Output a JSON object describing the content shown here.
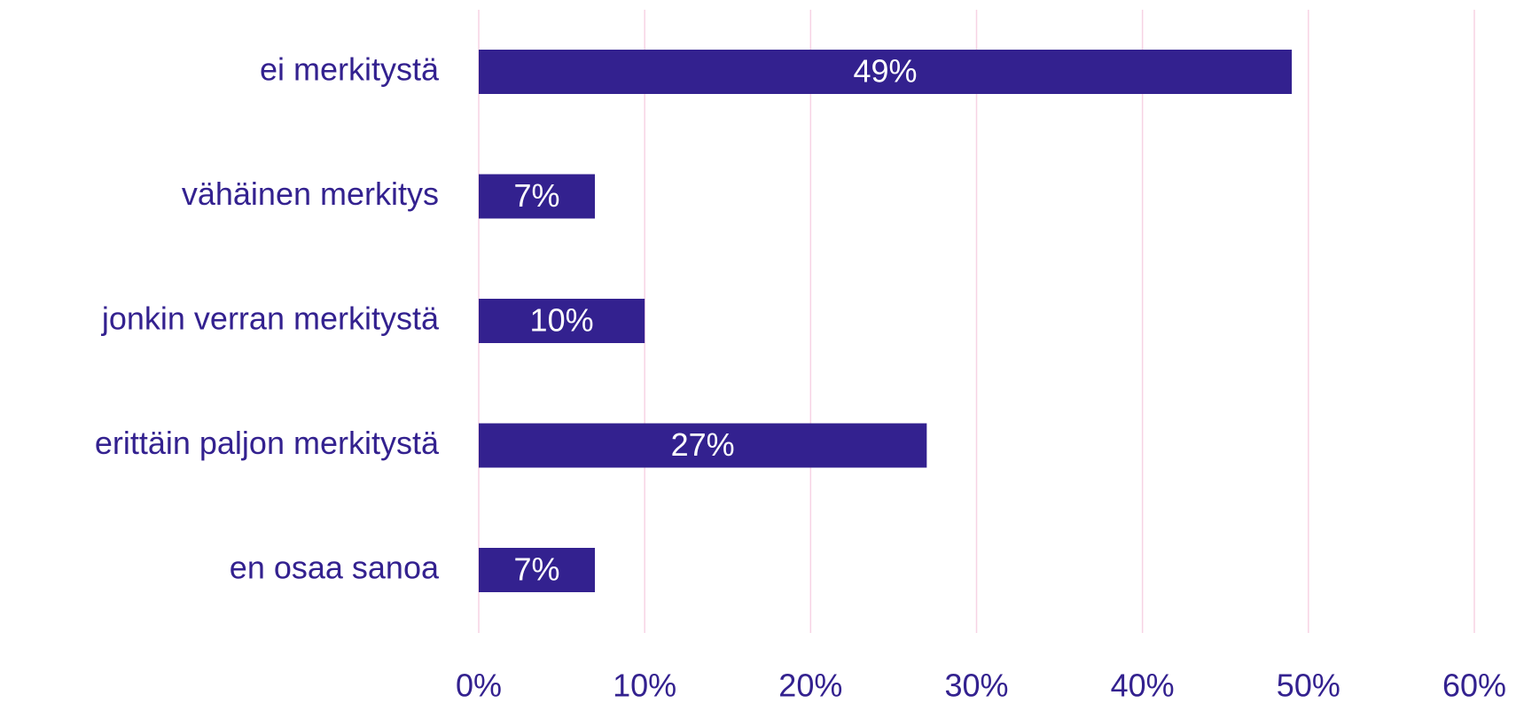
{
  "chart_data": {
    "type": "bar",
    "orientation": "horizontal",
    "categories": [
      "ei merkitystä",
      "vähäinen merkitys",
      "jonkin verran merkitystä",
      "erittäin paljon merkitystä",
      "en osaa sanoa"
    ],
    "values": [
      49,
      7,
      10,
      27,
      7
    ],
    "value_labels": [
      "49%",
      "7%",
      "10%",
      "27%",
      "7%"
    ],
    "color": "#33218f",
    "label_color": "#ffffff",
    "grid_color": "#f7d3e4",
    "grid": true,
    "xlim": [
      0,
      60
    ],
    "xticks": [
      {
        "value": 0,
        "label": "0%"
      },
      {
        "value": 10,
        "label": "10%"
      },
      {
        "value": 20,
        "label": "20%"
      },
      {
        "value": 30,
        "label": "30%"
      },
      {
        "value": 40,
        "label": "40%"
      },
      {
        "value": 50,
        "label": "50%"
      },
      {
        "value": 60,
        "label": "60%"
      }
    ]
  }
}
